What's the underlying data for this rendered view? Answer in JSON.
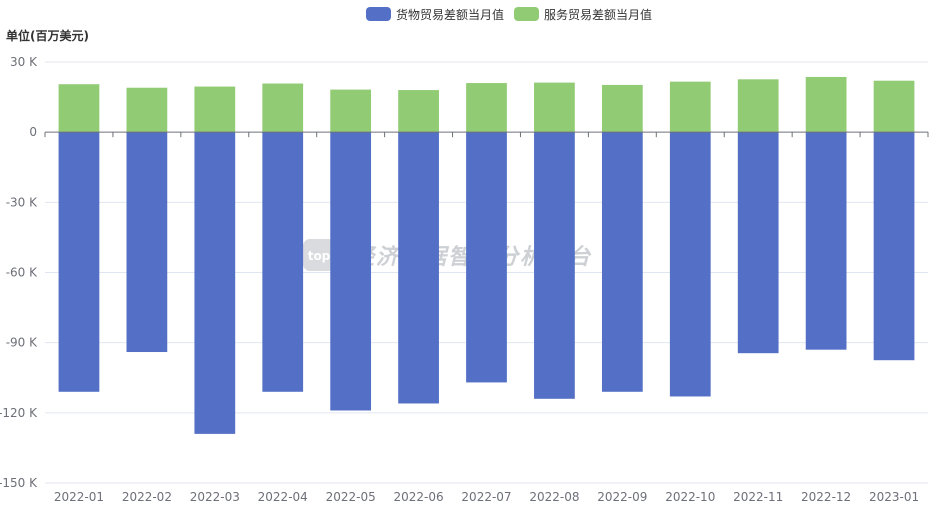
{
  "unit_label": "单位(百万美元)",
  "watermark": {
    "logo_text": "top",
    "text": "经济数据智能分析平台"
  },
  "colors": {
    "goods": "#5470c6",
    "services": "#91cc75",
    "grid": "#e0e6f1",
    "axis": "#6e7079"
  },
  "chart_data": {
    "type": "bar",
    "stacked": true,
    "categories": [
      "2022-01",
      "2022-02",
      "2022-03",
      "2022-04",
      "2022-05",
      "2022-06",
      "2022-07",
      "2022-08",
      "2022-09",
      "2022-10",
      "2022-11",
      "2022-12",
      "2023-01"
    ],
    "series": [
      {
        "name": "货物贸易差额当月值",
        "color": "#5470c6",
        "values": [
          -111000,
          -94000,
          -129000,
          -111000,
          -119000,
          -116000,
          -107000,
          -114000,
          -111000,
          -113000,
          -94500,
          -93000,
          -97500
        ]
      },
      {
        "name": "服务贸易差额当月值",
        "color": "#91cc75",
        "values": [
          20500,
          19000,
          19500,
          20800,
          18200,
          18000,
          21000,
          21200,
          20200,
          21600,
          22600,
          23600,
          22000
        ]
      }
    ],
    "ylim": [
      -150000,
      30000
    ],
    "yticks": [
      30000,
      0,
      -30000,
      -60000,
      -90000,
      -120000,
      -150000
    ],
    "ytick_labels": [
      "30 K",
      "0",
      "-30 K",
      "-60 K",
      "-90 K",
      "-120 K",
      "-150 K"
    ],
    "legend_position": "top-center",
    "grid": true
  }
}
